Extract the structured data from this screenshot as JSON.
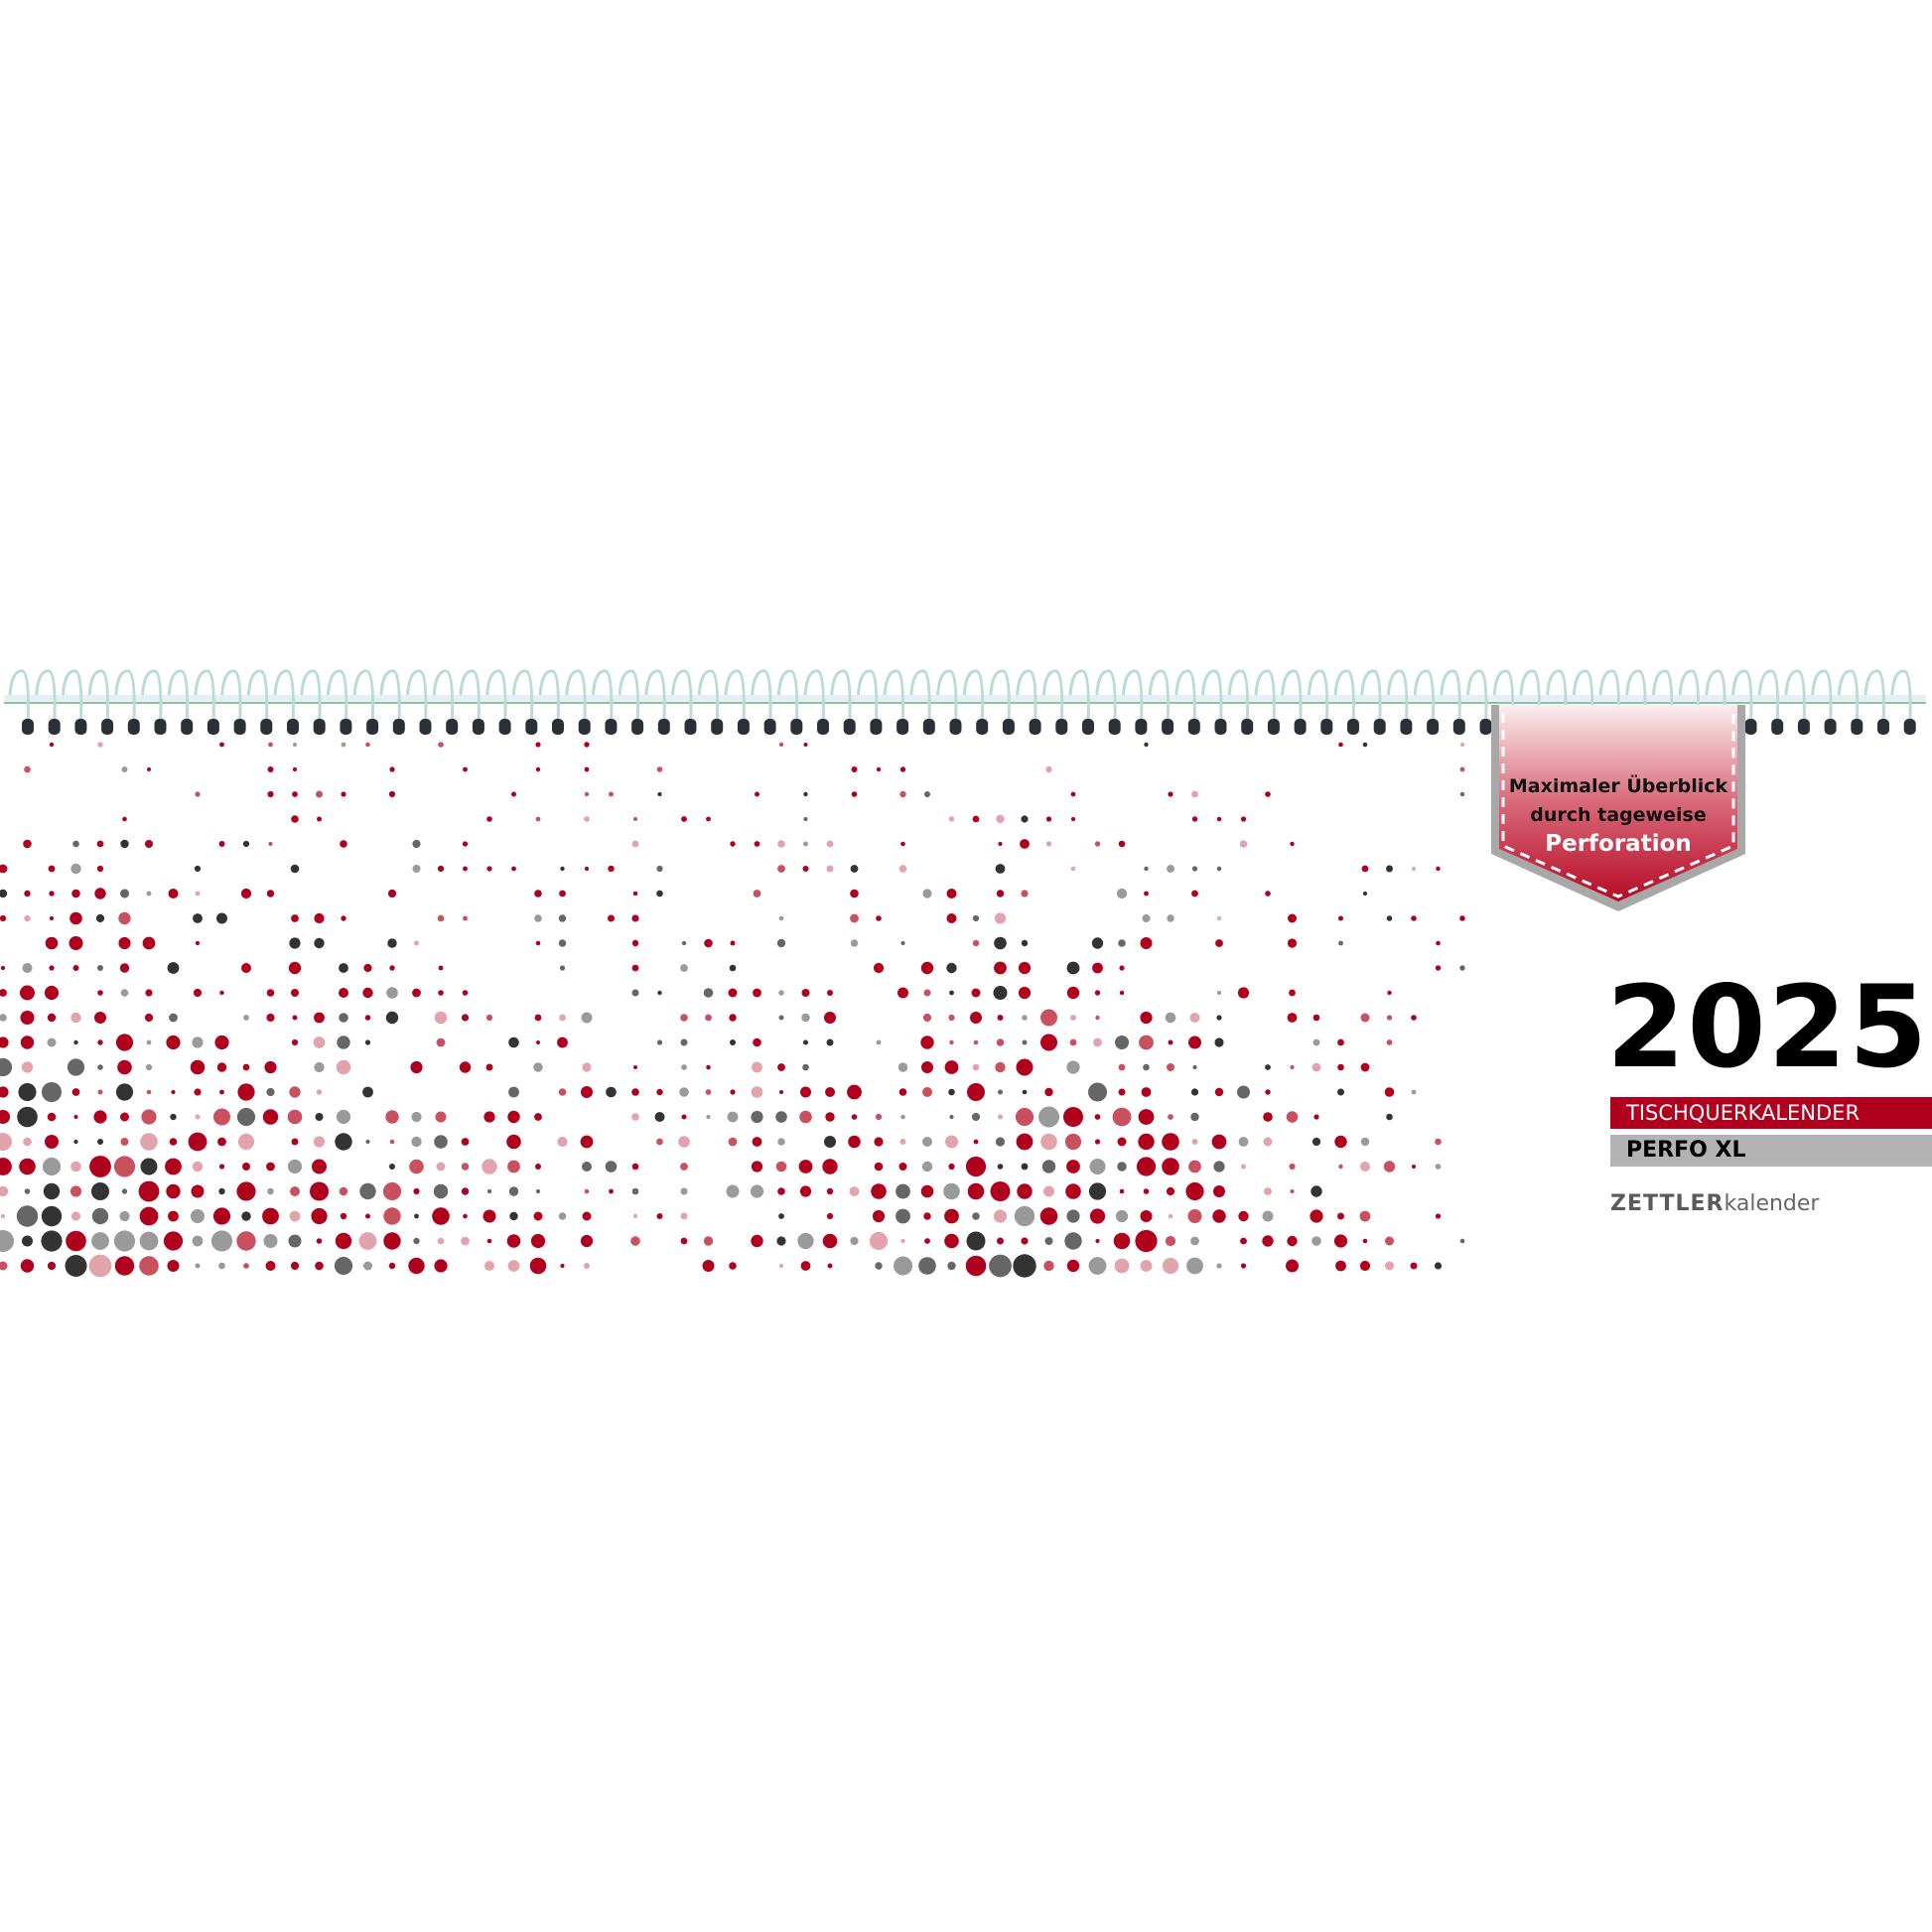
{
  "badge": {
    "line1": "Maximaler Überblick",
    "line2": "durch tageweise",
    "line3": "Perforation"
  },
  "year": "2025",
  "product_type": "TISCHQUERKALENDER",
  "product_name": "PERFO XL",
  "logo": {
    "brand": "ZETTLER",
    "sub": "kalender"
  },
  "colors": {
    "red": "#b0001e",
    "rose": "#c8505f",
    "pink": "#e3a3ad",
    "dark": "#333333",
    "grey": "#666666",
    "light_grey": "#9a9a9a",
    "bar_grey": "#b3b3b3"
  }
}
